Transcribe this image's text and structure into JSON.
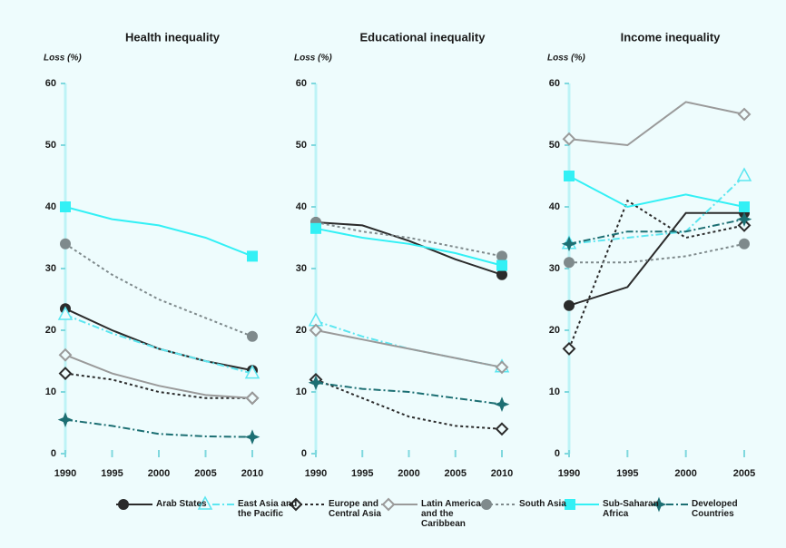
{
  "chart_data": [
    {
      "type": "line",
      "title": "Health inequality",
      "ylabel": "Loss (%)",
      "x": [
        1990,
        1995,
        2000,
        2005,
        2010
      ],
      "xlim": [
        1990,
        2010
      ],
      "xticks": [
        1990,
        1995,
        2000,
        2005,
        2010
      ],
      "ylim": [
        0,
        60
      ],
      "yticks": [
        0,
        10,
        20,
        30,
        40,
        50,
        60
      ],
      "series": [
        {
          "name": "Arab States",
          "color": "#2b2b2b",
          "dash": "solid",
          "marker": "circle",
          "values": [
            23.5,
            20,
            17,
            15,
            13.5
          ]
        },
        {
          "name": "East Asia and the Pacific",
          "color": "#5ce6f0",
          "dash": "dashdot",
          "marker": "triangle",
          "values": [
            22.5,
            19.5,
            17,
            15,
            13
          ]
        },
        {
          "name": "Europe and Central Asia",
          "color": "#2b2b2b",
          "dash": "dotted",
          "marker": "diamond",
          "values": [
            13,
            12,
            10,
            9,
            9
          ]
        },
        {
          "name": "Latin America and the Caribbean",
          "color": "#9a9a9a",
          "dash": "solid",
          "marker": "diamond",
          "values": [
            16,
            13,
            11,
            9.5,
            9
          ]
        },
        {
          "name": "South Asia",
          "color": "#7f8a8c",
          "dash": "dotted",
          "marker": "circle",
          "values": [
            34,
            29,
            25,
            22,
            19
          ]
        },
        {
          "name": "Sub-Saharan Africa",
          "color": "#33f0f5",
          "dash": "solid",
          "marker": "square",
          "values": [
            40,
            38,
            37,
            35,
            32
          ]
        },
        {
          "name": "Developed Countries",
          "color": "#1c6f73",
          "dash": "dashdot",
          "marker": "star",
          "values": [
            5.5,
            4.5,
            3.2,
            2.8,
            2.7
          ]
        }
      ]
    },
    {
      "type": "line",
      "title": "Educational inequality",
      "ylabel": "Loss (%)",
      "x": [
        1990,
        1995,
        2000,
        2005,
        2010
      ],
      "xlim": [
        1990,
        2010
      ],
      "xticks": [
        1990,
        1995,
        2000,
        2005,
        2010
      ],
      "ylim": [
        0,
        60
      ],
      "yticks": [
        0,
        10,
        20,
        30,
        40,
        50,
        60
      ],
      "series": [
        {
          "color": "#2b2b2b",
          "dash": "solid",
          "marker": "circle",
          "values": [
            37.5,
            37,
            34.5,
            31.5,
            29
          ]
        },
        {
          "color": "#5ce6f0",
          "dash": "dashdot",
          "marker": "triangle",
          "values": [
            21.5,
            19,
            17,
            15.5,
            14
          ]
        },
        {
          "color": "#2b2b2b",
          "dash": "dotted",
          "marker": "diamond",
          "values": [
            12,
            9,
            6,
            4.5,
            4
          ]
        },
        {
          "color": "#9a9a9a",
          "dash": "solid",
          "marker": "diamond",
          "values": [
            20,
            18.5,
            17,
            15.5,
            14
          ]
        },
        {
          "color": "#7f8a8c",
          "dash": "dotted",
          "marker": "circle",
          "values": [
            37.5,
            36,
            35,
            33.5,
            32
          ]
        },
        {
          "color": "#33f0f5",
          "dash": "solid",
          "marker": "square",
          "values": [
            36.5,
            35,
            34,
            32.5,
            30.5
          ]
        },
        {
          "color": "#1c6f73",
          "dash": "dashdot",
          "marker": "star",
          "values": [
            11.5,
            10.5,
            10,
            9,
            8
          ]
        }
      ]
    },
    {
      "type": "line",
      "title": "Income inequality",
      "ylabel": "Loss (%)",
      "x": [
        1990,
        1995,
        2000,
        2005
      ],
      "xlim": [
        1990,
        2005
      ],
      "xticks": [
        1990,
        1995,
        2000,
        2005
      ],
      "ylim": [
        0,
        60
      ],
      "yticks": [
        0,
        10,
        20,
        30,
        40,
        50,
        60
      ],
      "series": [
        {
          "color": "#2b2b2b",
          "dash": "solid",
          "marker": "circle",
          "values": [
            24,
            27,
            39,
            39
          ]
        },
        {
          "color": "#5ce6f0",
          "dash": "dashdot",
          "marker": "triangle",
          "values": [
            34,
            35,
            36,
            45
          ]
        },
        {
          "color": "#2b2b2b",
          "dash": "dotted",
          "marker": "diamond",
          "values": [
            17,
            41,
            35,
            37
          ]
        },
        {
          "color": "#9a9a9a",
          "dash": "solid",
          "marker": "diamond",
          "values": [
            51,
            50,
            57,
            55
          ]
        },
        {
          "color": "#7f8a8c",
          "dash": "dotted",
          "marker": "circle",
          "values": [
            31,
            31,
            32,
            34
          ]
        },
        {
          "color": "#33f0f5",
          "dash": "solid",
          "marker": "square",
          "values": [
            45,
            40,
            42,
            40
          ]
        },
        {
          "color": "#1c6f73",
          "dash": "dashdot",
          "marker": "star",
          "values": [
            34,
            36,
            36,
            38
          ]
        }
      ]
    }
  ]
}
